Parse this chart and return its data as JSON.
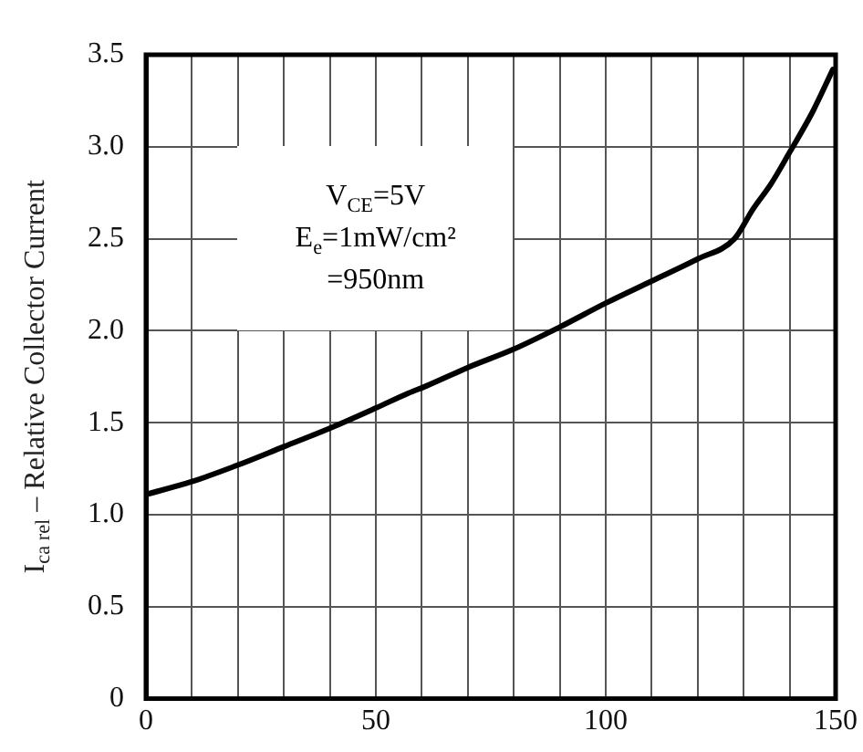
{
  "chart_data": {
    "type": "line",
    "ylabel": "I$_{ca rel}$ – Relative Collector Current",
    "annotations": [
      "V$_{CE}$=5V",
      "E$_{e}$=1mW/cm²",
      "=950nm"
    ],
    "x": [
      0,
      10,
      20,
      30,
      40,
      50,
      57,
      61,
      70,
      80,
      90,
      100,
      110,
      120,
      128,
      132,
      136,
      140,
      145,
      149.4
    ],
    "series": [
      {
        "color": "#000000",
        "values": [
          1.11,
          1.18,
          1.27,
          1.37,
          1.47,
          1.58,
          1.66,
          1.7,
          1.8,
          1.9,
          2.02,
          2.15,
          2.27,
          2.39,
          2.5,
          2.66,
          2.8,
          2.97,
          3.19,
          3.42
        ]
      }
    ],
    "xlim": [
      0,
      150
    ],
    "xticks": [
      0,
      {
        "value": 10,
        "label": null
      },
      {
        "value": 20,
        "label": null
      },
      {
        "value": 30,
        "label": null
      },
      {
        "value": 40,
        "label": null
      },
      50,
      {
        "value": 60,
        "label": null
      },
      {
        "value": 70,
        "label": null
      },
      {
        "value": 80,
        "label": null
      },
      {
        "value": 90,
        "label": null
      },
      100,
      {
        "value": 110,
        "label": null
      },
      {
        "value": 120,
        "label": null
      },
      {
        "value": 130,
        "label": null
      },
      {
        "value": 140,
        "label": null
      },
      150
    ],
    "ylim": [
      0,
      3.5
    ],
    "yticks": [
      0,
      {
        "value": 0.5,
        "label": "0.5"
      },
      {
        "value": 1,
        "label": "1.0"
      },
      {
        "value": 1.5,
        "label": "1.5"
      },
      {
        "value": 2,
        "label": "2.0"
      },
      {
        "value": 2.5,
        "label": "2.5"
      },
      {
        "value": 3,
        "label": "3.0"
      },
      {
        "value": 3.5,
        "label": "3.5"
      }
    ],
    "grid": true,
    "legend": false,
    "marker": "none",
    "line_style": "solid"
  }
}
